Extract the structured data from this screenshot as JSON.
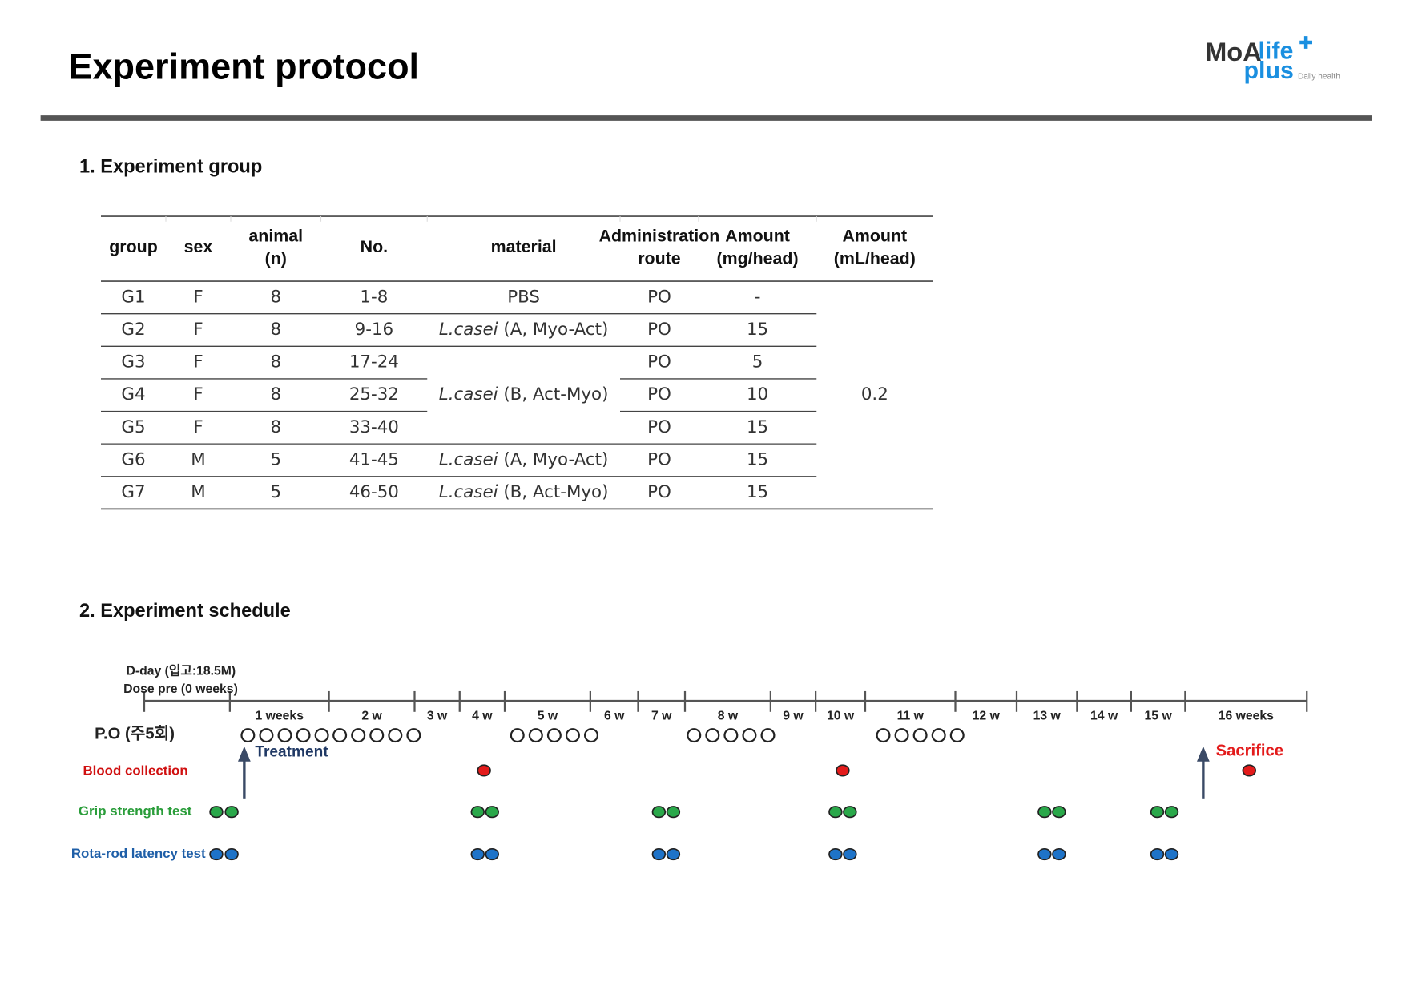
{
  "header": {
    "title": "Experiment  protocol",
    "logo": {
      "brand": "MoA",
      "life": "life",
      "plus": "plus",
      "tagline": "Daily health"
    }
  },
  "section1": {
    "title": "1. Experiment group",
    "table": {
      "headers": [
        [
          "group"
        ],
        [
          "sex"
        ],
        [
          "animal",
          "(n)"
        ],
        [
          "No."
        ],
        [
          "material"
        ],
        [
          "Administration",
          "route"
        ],
        [
          "Amount",
          "(mg/head)"
        ],
        [
          "Amount",
          "(mL/head)"
        ]
      ],
      "rows": [
        [
          "G1",
          "F",
          8,
          "1-8",
          {
            "text": "PBS"
          },
          "PO",
          "-"
        ],
        [
          "G2",
          "F",
          8,
          "9-16",
          {
            "species": "L.casei",
            "strain": "(A, Myo-Act)"
          },
          "PO",
          15
        ],
        [
          "G3",
          "F",
          8,
          "17-24",
          {
            "species": "L.casei",
            "strain": "(B, Act-Myo)"
          },
          "PO",
          5
        ],
        [
          "G4",
          "F",
          8,
          "25-32",
          null,
          "PO",
          10
        ],
        [
          "G5",
          "F",
          8,
          "33-40",
          null,
          "PO",
          15
        ],
        [
          "G6",
          "M",
          5,
          "41-45",
          {
            "species": "L.casei",
            "strain": "(A, Myo-Act)"
          },
          "PO",
          15
        ],
        [
          "G7",
          "M",
          5,
          "46-50",
          {
            "species": "L.casei",
            "strain": "(B, Act-Myo)"
          },
          "PO",
          15
        ]
      ],
      "volume": 0.2
    }
  },
  "section2": {
    "title": "2. Experiment schedule",
    "dday": "D-day (입고:18.5M)",
    "dose_pre": "Dose pre (0 weeks)",
    "weeks": [
      "1 weeks",
      "2 w",
      "3 w",
      "4 w",
      "5 w",
      "6 w",
      "7 w",
      "8 w",
      "9 w",
      "10 w",
      "11 w",
      "12 w",
      "13 w",
      "14 w",
      "15 w",
      "16 weeks"
    ],
    "rows": [
      "P.O (주5회)",
      "Blood collection",
      "Grip strength test",
      "Rota-rod latency test"
    ],
    "treatment": "Treatment",
    "sacrifice": "Sacrifice"
  }
}
